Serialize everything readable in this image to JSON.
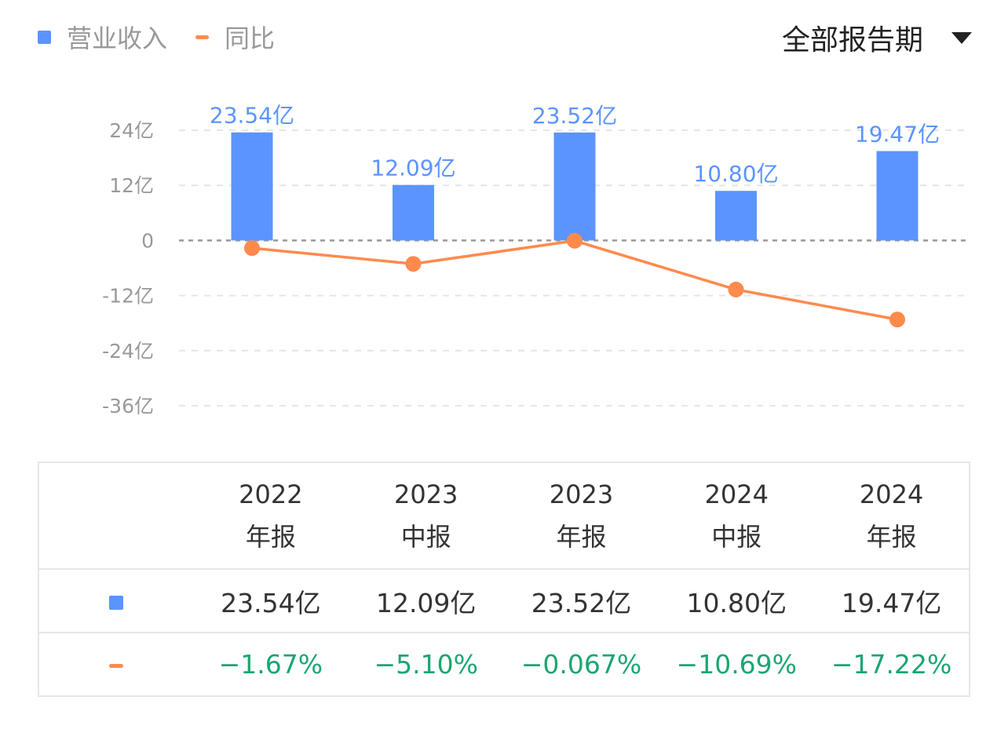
{
  "legend": {
    "revenue_label": "营业收入",
    "yoy_label": "同比"
  },
  "period_selector": {
    "label": "全部报告期"
  },
  "colors": {
    "bar": "#5b94ff",
    "line": "#ff8a4c",
    "yoy_text": "#1aa672",
    "grid": "#e6e6e6",
    "zero_line": "#999999"
  },
  "chart_data": {
    "type": "bar",
    "categories": [
      "2022年报",
      "2023中报",
      "2023年报",
      "2024中报",
      "2024年报"
    ],
    "yticks": [
      "24亿",
      "12亿",
      "0",
      "-12亿",
      "-24亿",
      "-36亿"
    ],
    "ytick_values": [
      24,
      12,
      0,
      -12,
      -24,
      -36
    ],
    "ylim": [
      -36,
      24
    ],
    "series": [
      {
        "name": "营业收入",
        "kind": "bar",
        "values": [
          23.54,
          12.09,
          23.52,
          10.8,
          19.47
        ],
        "labels": [
          "23.54亿",
          "12.09亿",
          "23.52亿",
          "10.80亿",
          "19.47亿"
        ]
      },
      {
        "name": "同比",
        "kind": "line",
        "values": [
          -1.67,
          -5.1,
          -0.067,
          -10.69,
          -17.22
        ],
        "labels": [
          "−1.67%",
          "−5.10%",
          "−0.067%",
          "−10.69%",
          "−17.22%"
        ]
      }
    ]
  },
  "table": {
    "columns": [
      {
        "line1": "2022",
        "line2": "年报"
      },
      {
        "line1": "2023",
        "line2": "中报"
      },
      {
        "line1": "2023",
        "line2": "年报"
      },
      {
        "line1": "2024",
        "line2": "中报"
      },
      {
        "line1": "2024",
        "line2": "年报"
      }
    ],
    "revenue_row": [
      "23.54亿",
      "12.09亿",
      "23.52亿",
      "10.80亿",
      "19.47亿"
    ],
    "yoy_row": [
      "−1.67%",
      "−5.10%",
      "−0.067%",
      "−10.69%",
      "−17.22%"
    ]
  }
}
